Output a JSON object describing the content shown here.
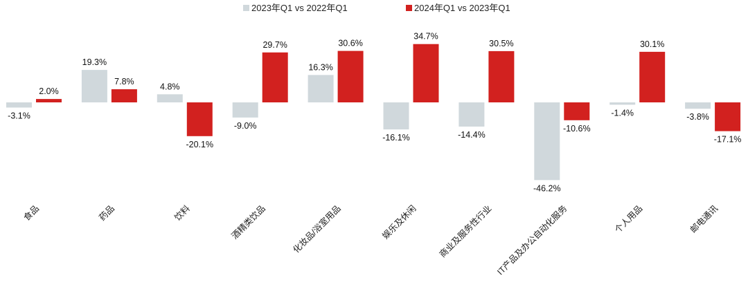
{
  "chart_data": {
    "type": "bar",
    "categories": [
      "食品",
      "药品",
      "饮料",
      "酒精类饮品",
      "化妆品/浴室用品",
      "娱乐及休闲",
      "商业及服务性行业",
      "IT产品及办公自动化服务",
      "个人用品",
      "邮电通讯"
    ],
    "series": [
      {
        "name": "2023年Q1 vs 2022年Q1",
        "color": "#d0d8dc",
        "values": [
          -3.1,
          19.3,
          4.8,
          -9.0,
          16.3,
          -16.1,
          -14.4,
          -46.2,
          -1.4,
          -3.8
        ],
        "labels": [
          "-3.1%",
          "19.3%",
          "4.8%",
          "-9.0%",
          "16.3%",
          "-16.1%",
          "-14.4%",
          "-46.2%",
          "-1.4%",
          "-3.8%"
        ]
      },
      {
        "name": "2024年Q1 vs 2023年Q1",
        "color": "#d2211f",
        "values": [
          2.0,
          7.8,
          -20.1,
          29.7,
          30.6,
          34.7,
          30.5,
          -10.6,
          30.1,
          -17.1
        ],
        "labels": [
          "2.0%",
          "7.8%",
          "-20.1%",
          "29.7%",
          "30.6%",
          "34.7%",
          "30.5%",
          "-10.6%",
          "30.1%",
          "-17.1%"
        ]
      }
    ],
    "legend_position": "top-center",
    "grid": false,
    "ylim": [
      -50,
      40
    ]
  }
}
